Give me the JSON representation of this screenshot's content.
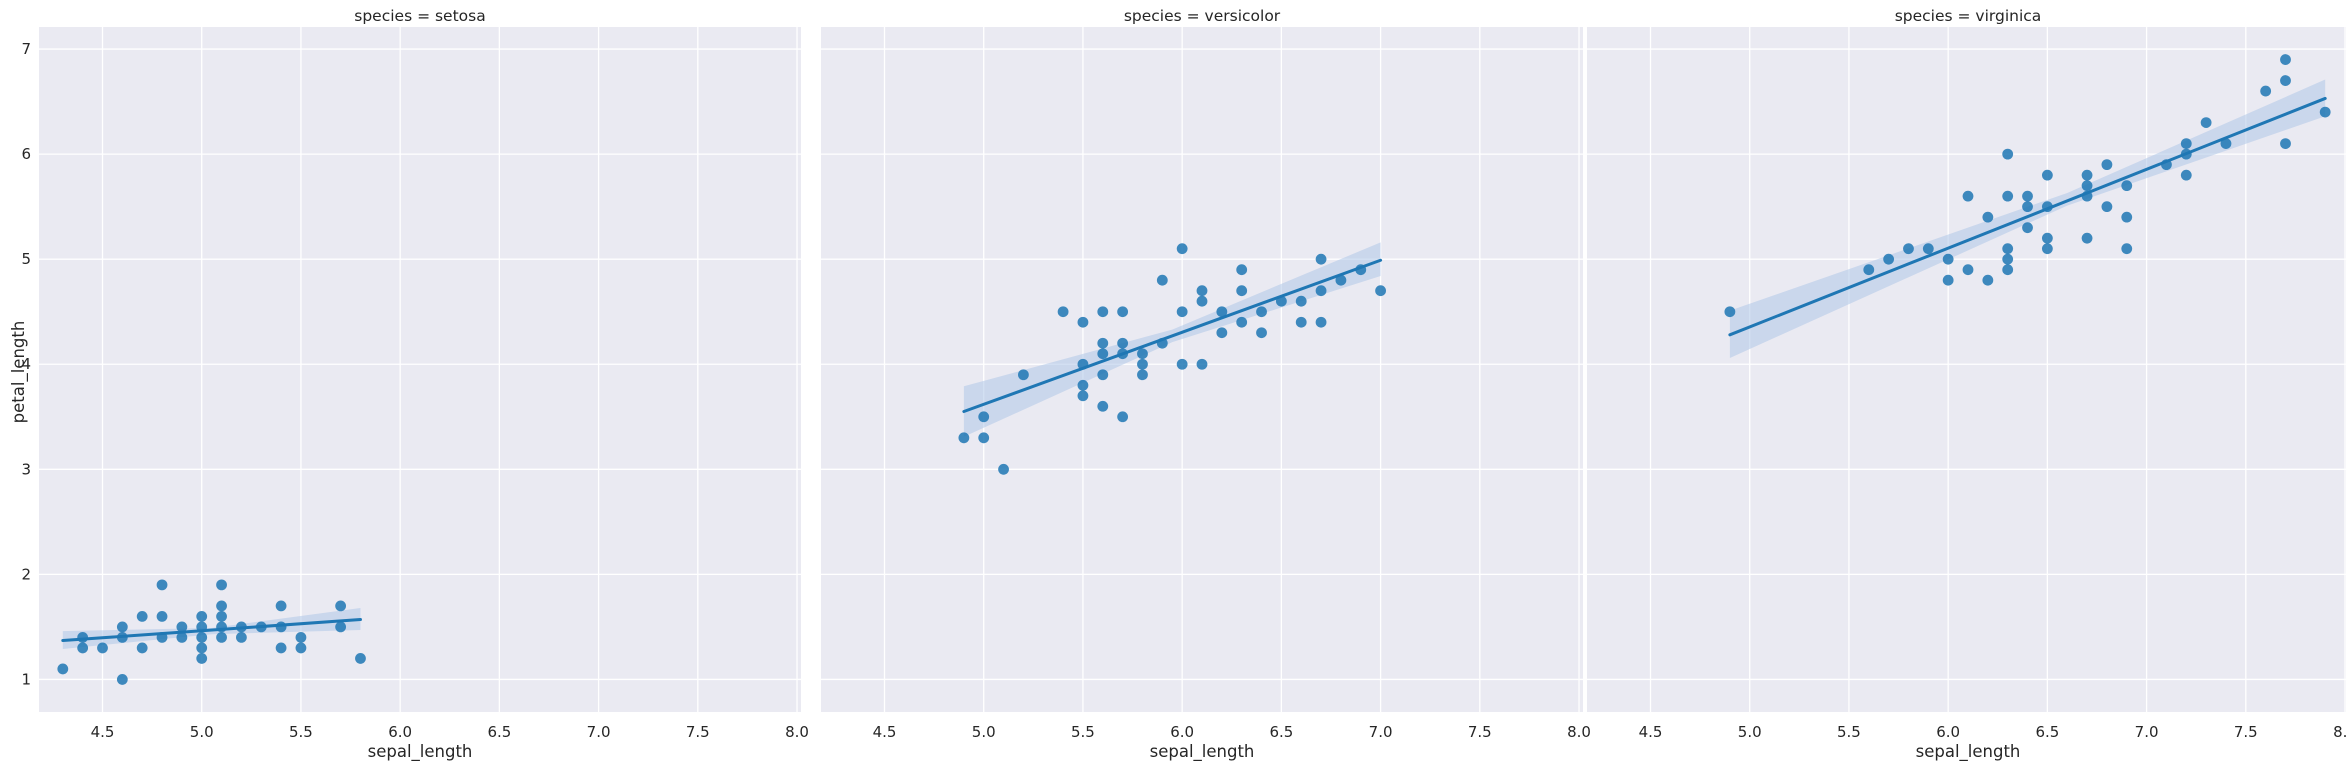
{
  "chart_data": {
    "type": "scatter",
    "facet_by": "species",
    "xlabel": "sepal_length",
    "ylabel": "petal_length",
    "xlim": [
      4.18,
      8.02
    ],
    "ylim": [
      0.69,
      7.21
    ],
    "xticks": [
      "4.5",
      "5.0",
      "5.5",
      "6.0",
      "6.5",
      "7.0",
      "7.5",
      "8.0"
    ],
    "yticks": [
      "1",
      "2",
      "3",
      "4",
      "5",
      "6",
      "7"
    ],
    "grid": true,
    "colors": {
      "background": "#eaeaf2",
      "grid": "#ffffff",
      "points": "#1f77b4",
      "regression_line": "#1f77b4",
      "confidence_band": "#aec7e8"
    },
    "panels": [
      {
        "title": "species = setosa",
        "points": [
          [
            4.3,
            1.1
          ],
          [
            4.4,
            1.3
          ],
          [
            4.4,
            1.4
          ],
          [
            4.5,
            1.3
          ],
          [
            4.6,
            1.0
          ],
          [
            4.6,
            1.4
          ],
          [
            4.6,
            1.5
          ],
          [
            4.7,
            1.3
          ],
          [
            4.7,
            1.6
          ],
          [
            4.8,
            1.4
          ],
          [
            4.8,
            1.6
          ],
          [
            4.8,
            1.9
          ],
          [
            4.9,
            1.4
          ],
          [
            4.9,
            1.5
          ],
          [
            5.0,
            1.2
          ],
          [
            5.0,
            1.3
          ],
          [
            5.0,
            1.4
          ],
          [
            5.0,
            1.5
          ],
          [
            5.0,
            1.6
          ],
          [
            5.1,
            1.4
          ],
          [
            5.1,
            1.5
          ],
          [
            5.1,
            1.6
          ],
          [
            5.1,
            1.7
          ],
          [
            5.1,
            1.9
          ],
          [
            5.2,
            1.4
          ],
          [
            5.2,
            1.5
          ],
          [
            5.3,
            1.5
          ],
          [
            5.4,
            1.3
          ],
          [
            5.4,
            1.5
          ],
          [
            5.4,
            1.7
          ],
          [
            5.5,
            1.3
          ],
          [
            5.5,
            1.4
          ],
          [
            5.7,
            1.5
          ],
          [
            5.7,
            1.7
          ],
          [
            5.8,
            1.2
          ]
        ],
        "fit": {
          "x": [
            4.3,
            5.8
          ],
          "y": [
            1.37,
            1.57
          ]
        },
        "band": {
          "x": [
            4.3,
            5.05,
            5.8
          ],
          "lower": [
            1.29,
            1.43,
            1.47
          ],
          "upper": [
            1.46,
            1.49,
            1.68
          ]
        }
      },
      {
        "title": "species = versicolor",
        "points": [
          [
            4.9,
            3.3
          ],
          [
            5.0,
            3.3
          ],
          [
            5.0,
            3.5
          ],
          [
            5.1,
            3.0
          ],
          [
            5.2,
            3.9
          ],
          [
            5.4,
            4.5
          ],
          [
            5.5,
            3.7
          ],
          [
            5.5,
            3.8
          ],
          [
            5.5,
            4.0
          ],
          [
            5.5,
            4.4
          ],
          [
            5.6,
            3.6
          ],
          [
            5.6,
            3.9
          ],
          [
            5.6,
            4.1
          ],
          [
            5.6,
            4.2
          ],
          [
            5.6,
            4.5
          ],
          [
            5.7,
            3.5
          ],
          [
            5.7,
            4.1
          ],
          [
            5.7,
            4.2
          ],
          [
            5.7,
            4.5
          ],
          [
            5.8,
            3.9
          ],
          [
            5.8,
            4.0
          ],
          [
            5.8,
            4.1
          ],
          [
            5.9,
            4.2
          ],
          [
            5.9,
            4.8
          ],
          [
            6.0,
            4.0
          ],
          [
            6.0,
            4.5
          ],
          [
            6.0,
            5.1
          ],
          [
            6.1,
            4.0
          ],
          [
            6.1,
            4.6
          ],
          [
            6.1,
            4.7
          ],
          [
            6.2,
            4.3
          ],
          [
            6.2,
            4.5
          ],
          [
            6.3,
            4.4
          ],
          [
            6.3,
            4.7
          ],
          [
            6.3,
            4.9
          ],
          [
            6.4,
            4.3
          ],
          [
            6.4,
            4.5
          ],
          [
            6.5,
            4.6
          ],
          [
            6.6,
            4.4
          ],
          [
            6.6,
            4.6
          ],
          [
            6.7,
            4.4
          ],
          [
            6.7,
            4.7
          ],
          [
            6.7,
            5.0
          ],
          [
            6.8,
            4.8
          ],
          [
            6.9,
            4.9
          ],
          [
            7.0,
            4.7
          ]
        ],
        "fit": {
          "x": [
            4.9,
            7.0
          ],
          "y": [
            3.55,
            4.99
          ]
        },
        "band": {
          "x": [
            4.9,
            5.95,
            7.0
          ],
          "lower": [
            3.31,
            4.21,
            4.84
          ],
          "upper": [
            3.79,
            4.33,
            5.16
          ]
        }
      },
      {
        "title": "species = virginica",
        "points": [
          [
            4.9,
            4.5
          ],
          [
            5.6,
            4.9
          ],
          [
            5.7,
            5.0
          ],
          [
            5.8,
            5.1
          ],
          [
            5.9,
            5.1
          ],
          [
            6.0,
            4.8
          ],
          [
            6.0,
            5.0
          ],
          [
            6.1,
            4.9
          ],
          [
            6.1,
            5.6
          ],
          [
            6.2,
            4.8
          ],
          [
            6.2,
            5.4
          ],
          [
            6.3,
            4.9
          ],
          [
            6.3,
            5.0
          ],
          [
            6.3,
            5.1
          ],
          [
            6.3,
            5.6
          ],
          [
            6.3,
            6.0
          ],
          [
            6.4,
            5.3
          ],
          [
            6.4,
            5.5
          ],
          [
            6.4,
            5.6
          ],
          [
            6.5,
            5.1
          ],
          [
            6.5,
            5.2
          ],
          [
            6.5,
            5.5
          ],
          [
            6.5,
            5.8
          ],
          [
            6.7,
            5.2
          ],
          [
            6.7,
            5.6
          ],
          [
            6.7,
            5.7
          ],
          [
            6.7,
            5.8
          ],
          [
            6.8,
            5.5
          ],
          [
            6.8,
            5.9
          ],
          [
            6.9,
            5.1
          ],
          [
            6.9,
            5.4
          ],
          [
            6.9,
            5.7
          ],
          [
            7.1,
            5.9
          ],
          [
            7.2,
            5.8
          ],
          [
            7.2,
            6.0
          ],
          [
            7.2,
            6.1
          ],
          [
            7.3,
            6.3
          ],
          [
            7.4,
            6.1
          ],
          [
            7.6,
            6.6
          ],
          [
            7.7,
            6.1
          ],
          [
            7.7,
            6.7
          ],
          [
            7.7,
            6.9
          ],
          [
            7.9,
            6.4
          ]
        ],
        "fit": {
          "x": [
            4.9,
            7.9
          ],
          "y": [
            4.28,
            6.53
          ]
        },
        "band": {
          "x": [
            4.9,
            6.6,
            7.9
          ],
          "lower": [
            4.06,
            5.51,
            6.36
          ],
          "upper": [
            4.51,
            5.63,
            6.71
          ]
        }
      }
    ]
  }
}
